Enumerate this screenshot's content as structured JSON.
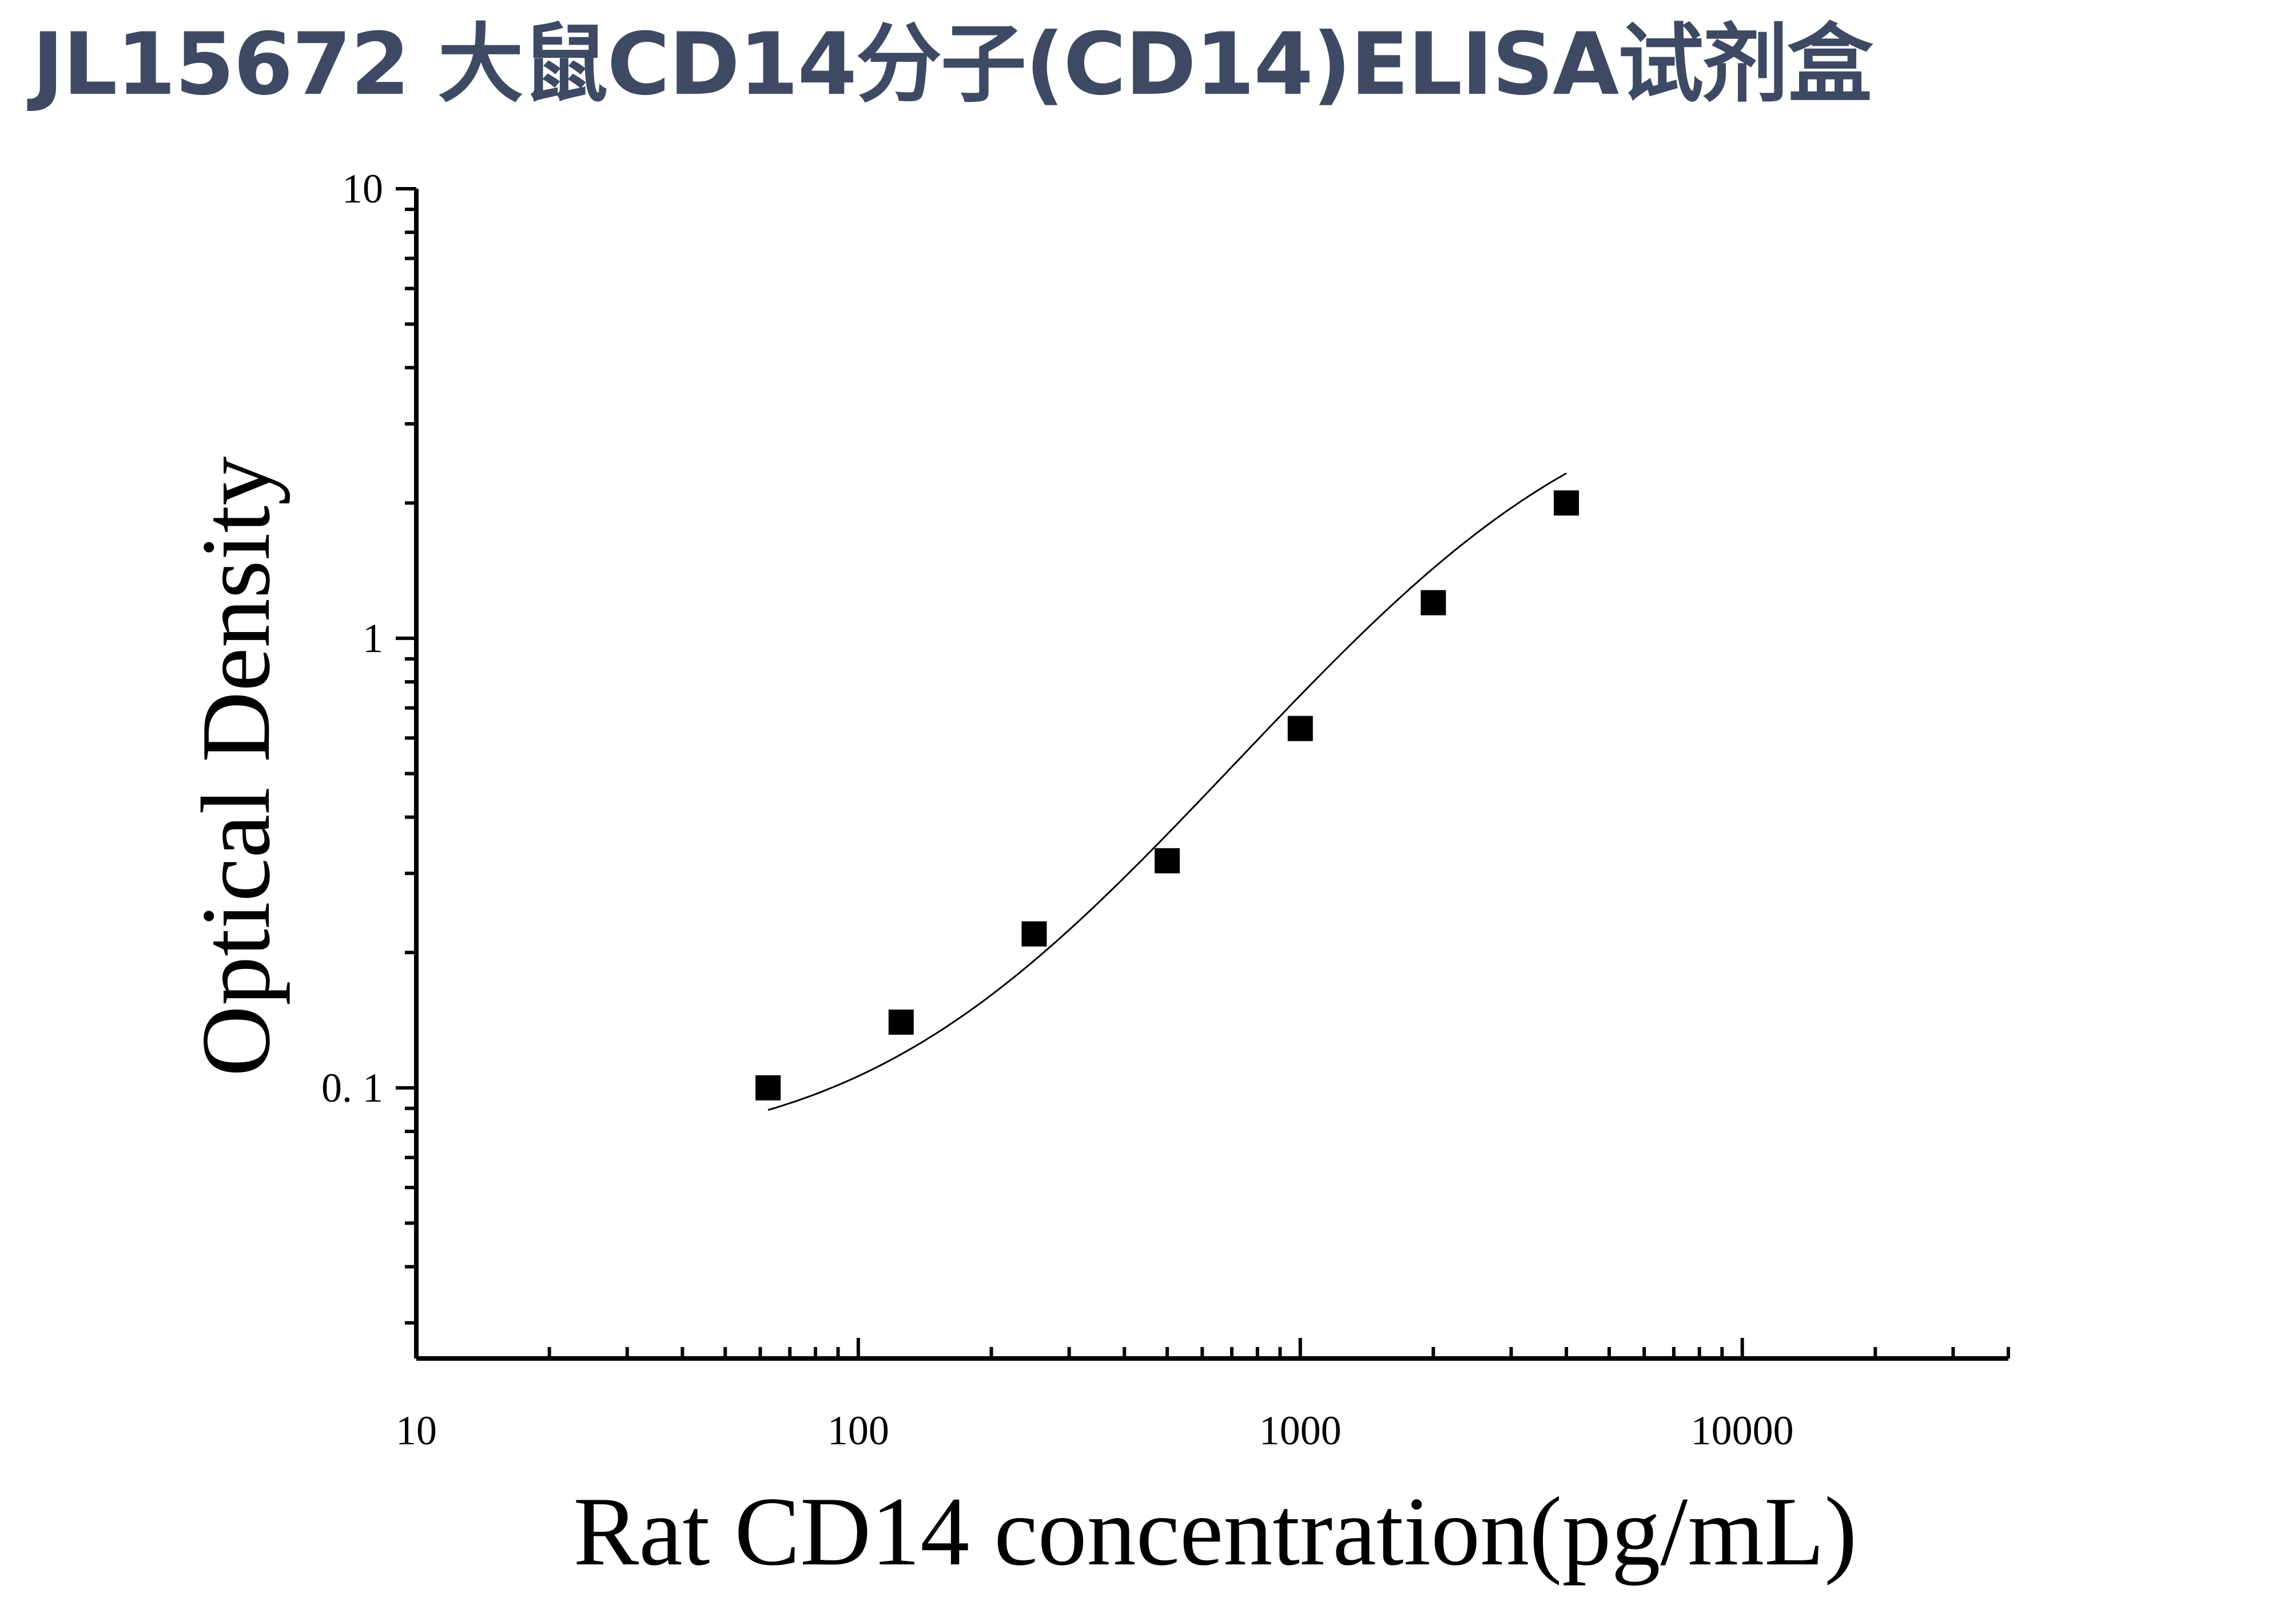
{
  "title": "JL15672 大鼠CD14分子(CD14)ELISA试剂盒",
  "chart_data": {
    "type": "scatter",
    "title": "JL15672 大鼠CD14分子(CD14)ELISA试剂盒",
    "xlabel": "Rat CD14 concentration(pg/mL)",
    "ylabel": "Optical Density",
    "xscale": "log",
    "yscale": "log",
    "xlim": [
      10,
      40000
    ],
    "ylim": [
      0.025,
      10
    ],
    "xticks": [
      10,
      100,
      1000,
      10000
    ],
    "xtick_labels": [
      "10",
      "100",
      "1000",
      "10000"
    ],
    "yticks": [
      0.1,
      1,
      10
    ],
    "ytick_labels": [
      "0. 1",
      "1",
      "10"
    ],
    "grid": false,
    "legend": "none",
    "series": [
      {
        "marker": "square",
        "color": "#000000",
        "x": [
          62.5,
          125,
          250,
          500,
          1000,
          2000,
          4000
        ],
        "y": [
          0.1,
          0.14,
          0.22,
          0.32,
          0.63,
          1.2,
          2.0
        ]
      }
    ],
    "fit_curve": {
      "type": "4PL",
      "color": "#000000",
      "x_range": [
        62.5,
        4000
      ],
      "params": {
        "A": 0.07,
        "B": 1.35,
        "C": 3200,
        "D": 4.0
      }
    }
  }
}
